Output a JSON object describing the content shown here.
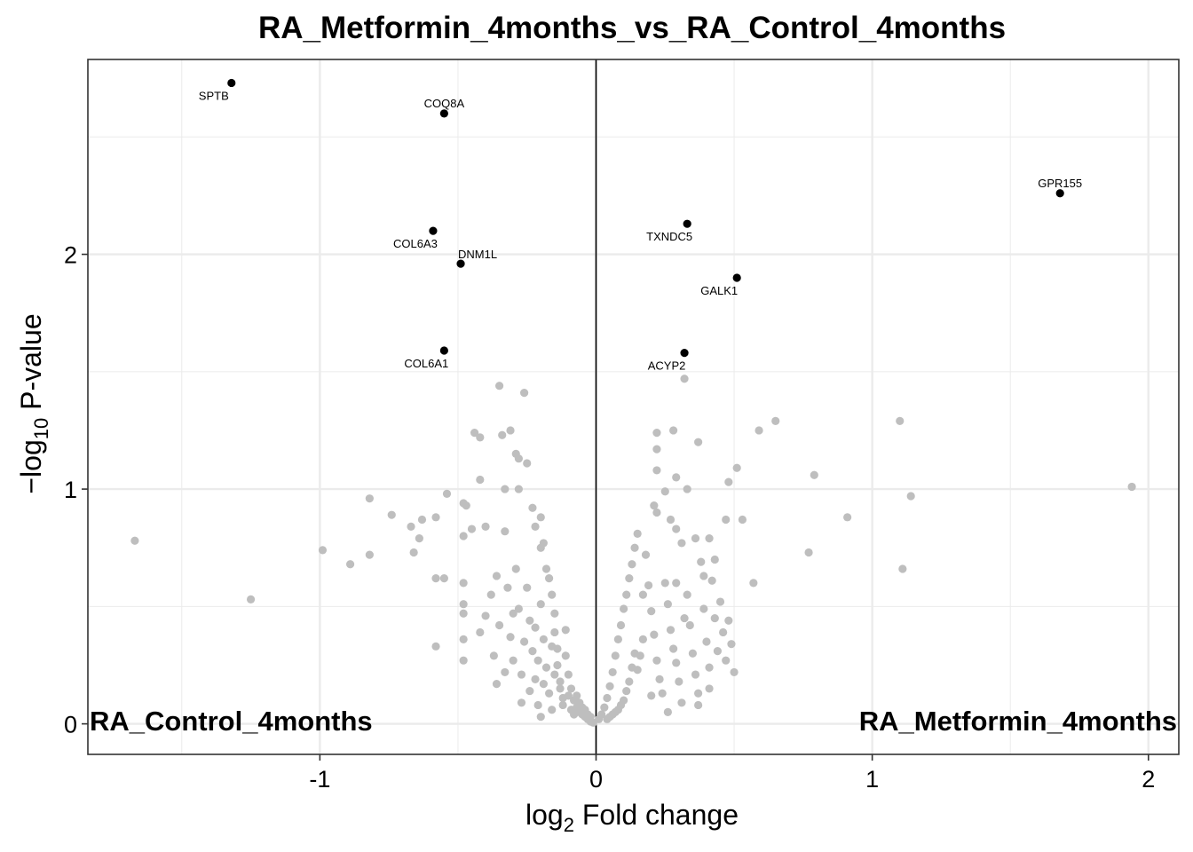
{
  "chart_data": {
    "type": "scatter",
    "title": "RA_Metformin_4months_vs_RA_Control_4months",
    "xlabel_main": "log",
    "xlabel_sub": "2",
    "xlabel_rest": " Fold change",
    "ylabel_main": "−log",
    "ylabel_sub": "10",
    "ylabel_rest": " P-value",
    "xlim": [
      -1.84,
      2.11
    ],
    "ylim": [
      -0.13,
      2.83
    ],
    "x_ticks": [
      -1,
      0,
      1,
      2
    ],
    "x_tick_labels": [
      "-1",
      "0",
      "1",
      "2"
    ],
    "y_ticks": [
      0,
      1,
      2
    ],
    "y_tick_labels": [
      "0",
      "1",
      "2"
    ],
    "x_minor_grid": [
      -1.5,
      -0.5,
      0.5,
      1.5
    ],
    "y_minor_grid": [
      0.5,
      1.5,
      2.5
    ],
    "vline_x": 0,
    "grid": true,
    "group_labels": {
      "left": "RA_Control_4months",
      "right": "RA_Metformin_4months"
    },
    "colors": {
      "significant": "#000000",
      "nonsignificant": "#bebebe",
      "grid": "#ebebeb",
      "border": "#333333"
    },
    "significant": [
      {
        "gene": "SPTB",
        "x": -1.32,
        "y": 2.73,
        "label_pos": "below-left"
      },
      {
        "gene": "COQ8A",
        "x": -0.55,
        "y": 2.6,
        "label_pos": "above"
      },
      {
        "gene": "COL6A3",
        "x": -0.59,
        "y": 2.1,
        "label_pos": "below-left"
      },
      {
        "gene": "DNM1L",
        "x": -0.49,
        "y": 1.96,
        "label_pos": "above-right"
      },
      {
        "gene": "COL6A1",
        "x": -0.55,
        "y": 1.59,
        "label_pos": "below-left"
      },
      {
        "gene": "TXNDC5",
        "x": 0.33,
        "y": 2.13,
        "label_pos": "below-left"
      },
      {
        "gene": "GALK1",
        "x": 0.51,
        "y": 1.9,
        "label_pos": "below-left"
      },
      {
        "gene": "ACYP2",
        "x": 0.32,
        "y": 1.58,
        "label_pos": "below-left"
      },
      {
        "gene": "GPR155",
        "x": 1.68,
        "y": 2.26,
        "label_pos": "above"
      }
    ],
    "nonsignificant": [
      [
        -1.67,
        0.78
      ],
      [
        -1.25,
        0.53
      ],
      [
        -0.99,
        0.74
      ],
      [
        -0.89,
        0.68
      ],
      [
        -0.82,
        0.72
      ],
      [
        -0.82,
        0.96
      ],
      [
        -0.74,
        0.89
      ],
      [
        -0.67,
        0.84
      ],
      [
        -0.66,
        0.73
      ],
      [
        -0.64,
        0.79
      ],
      [
        -0.63,
        0.87
      ],
      [
        -0.58,
        0.88
      ],
      [
        -0.58,
        0.62
      ],
      [
        -0.58,
        0.33
      ],
      [
        -0.55,
        0.62
      ],
      [
        -0.54,
        0.98
      ],
      [
        -0.48,
        0.94
      ],
      [
        -0.47,
        0.93
      ],
      [
        -0.48,
        0.8
      ],
      [
        -0.48,
        0.6
      ],
      [
        -0.48,
        0.51
      ],
      [
        -0.48,
        0.47
      ],
      [
        -0.48,
        0.36
      ],
      [
        -0.48,
        0.27
      ],
      [
        -0.45,
        0.83
      ],
      [
        -0.44,
        1.24
      ],
      [
        -0.42,
        1.04
      ],
      [
        -0.42,
        1.22
      ],
      [
        -0.4,
        0.84
      ],
      [
        -0.35,
        1.44
      ],
      [
        -0.34,
        1.23
      ],
      [
        -0.33,
        1.0
      ],
      [
        -0.33,
        0.82
      ],
      [
        -0.31,
        1.25
      ],
      [
        -0.29,
        1.15
      ],
      [
        -0.28,
        1.13
      ],
      [
        -0.28,
        1.0
      ],
      [
        -0.26,
        1.41
      ],
      [
        -0.25,
        1.11
      ],
      [
        -0.23,
        0.92
      ],
      [
        -0.22,
        0.84
      ],
      [
        -0.2,
        0.88
      ],
      [
        -0.2,
        0.75
      ],
      [
        -0.19,
        0.77
      ],
      [
        -0.18,
        0.66
      ],
      [
        -0.17,
        0.62
      ],
      [
        -0.16,
        0.55
      ],
      [
        -0.15,
        0.47
      ],
      [
        -0.15,
        0.39
      ],
      [
        -0.14,
        0.32
      ],
      [
        -0.14,
        0.25
      ],
      [
        -0.13,
        0.18
      ],
      [
        -0.12,
        0.11
      ],
      [
        -0.36,
        0.17
      ],
      [
        -0.35,
        0.42
      ],
      [
        -0.32,
        0.58
      ],
      [
        -0.31,
        0.37
      ],
      [
        -0.3,
        0.27
      ],
      [
        -0.29,
        0.66
      ],
      [
        -0.28,
        0.49
      ],
      [
        -0.27,
        0.21
      ],
      [
        -0.27,
        0.09
      ],
      [
        -0.25,
        0.58
      ],
      [
        -0.24,
        0.44
      ],
      [
        -0.23,
        0.31
      ],
      [
        -0.22,
        0.19
      ],
      [
        -0.21,
        0.08
      ],
      [
        -0.2,
        0.51
      ],
      [
        -0.19,
        0.36
      ],
      [
        -0.18,
        0.24
      ],
      [
        -0.17,
        0.13
      ],
      [
        -0.16,
        0.06
      ],
      [
        -0.11,
        0.29
      ],
      [
        -0.1,
        0.21
      ],
      [
        -0.09,
        0.15
      ],
      [
        -0.08,
        0.1
      ],
      [
        -0.07,
        0.07
      ],
      [
        -0.06,
        0.05
      ],
      [
        -0.05,
        0.04
      ],
      [
        -0.04,
        0.03
      ],
      [
        -0.03,
        0.02
      ],
      [
        -0.02,
        0.01
      ],
      [
        -0.01,
        0.005
      ],
      [
        -0.42,
        0.39
      ],
      [
        -0.4,
        0.46
      ],
      [
        -0.38,
        0.55
      ],
      [
        -0.37,
        0.29
      ],
      [
        -0.36,
        0.63
      ],
      [
        -0.33,
        0.22
      ],
      [
        -0.3,
        0.47
      ],
      [
        -0.26,
        0.35
      ],
      [
        -0.24,
        0.14
      ],
      [
        -0.22,
        0.41
      ],
      [
        -0.21,
        0.27
      ],
      [
        -0.19,
        0.17
      ],
      [
        -0.15,
        0.21
      ],
      [
        -0.13,
        0.15
      ],
      [
        -0.12,
        0.08
      ],
      [
        -0.1,
        0.12
      ],
      [
        -0.09,
        0.06
      ],
      [
        -0.08,
        0.04
      ],
      [
        -0.07,
        0.12
      ],
      [
        -0.06,
        0.09
      ],
      [
        -0.05,
        0.07
      ],
      [
        -0.04,
        0.06
      ],
      [
        -0.03,
        0.04
      ],
      [
        -0.02,
        0.03
      ],
      [
        -0.16,
        0.33
      ],
      [
        -0.2,
        0.03
      ],
      [
        -0.11,
        0.4
      ],
      [
        0.32,
        1.47
      ],
      [
        0.22,
        1.24
      ],
      [
        0.28,
        1.25
      ],
      [
        0.22,
        1.17
      ],
      [
        0.22,
        1.08
      ],
      [
        0.29,
        1.05
      ],
      [
        0.33,
        1.0
      ],
      [
        0.25,
        0.99
      ],
      [
        0.21,
        0.93
      ],
      [
        0.22,
        0.9
      ],
      [
        0.27,
        0.87
      ],
      [
        0.29,
        0.83
      ],
      [
        0.31,
        0.77
      ],
      [
        0.37,
        1.2
      ],
      [
        0.36,
        0.79
      ],
      [
        0.41,
        0.79
      ],
      [
        0.47,
        0.87
      ],
      [
        0.48,
        1.03
      ],
      [
        0.51,
        1.09
      ],
      [
        0.53,
        0.87
      ],
      [
        0.57,
        0.6
      ],
      [
        0.59,
        1.25
      ],
      [
        0.65,
        1.29
      ],
      [
        0.77,
        0.73
      ],
      [
        0.79,
        1.06
      ],
      [
        0.91,
        0.88
      ],
      [
        1.1,
        1.29
      ],
      [
        1.11,
        0.66
      ],
      [
        1.14,
        0.97
      ],
      [
        1.94,
        1.01
      ],
      [
        0.15,
        0.81
      ],
      [
        0.14,
        0.75
      ],
      [
        0.13,
        0.68
      ],
      [
        0.12,
        0.62
      ],
      [
        0.11,
        0.55
      ],
      [
        0.1,
        0.49
      ],
      [
        0.09,
        0.42
      ],
      [
        0.08,
        0.36
      ],
      [
        0.07,
        0.29
      ],
      [
        0.06,
        0.22
      ],
      [
        0.05,
        0.16
      ],
      [
        0.04,
        0.11
      ],
      [
        0.03,
        0.07
      ],
      [
        0.02,
        0.04
      ],
      [
        0.01,
        0.02
      ],
      [
        0.18,
        0.72
      ],
      [
        0.19,
        0.59
      ],
      [
        0.2,
        0.48
      ],
      [
        0.21,
        0.38
      ],
      [
        0.22,
        0.27
      ],
      [
        0.23,
        0.19
      ],
      [
        0.24,
        0.13
      ],
      [
        0.25,
        0.6
      ],
      [
        0.26,
        0.51
      ],
      [
        0.27,
        0.4
      ],
      [
        0.28,
        0.32
      ],
      [
        0.29,
        0.26
      ],
      [
        0.3,
        0.18
      ],
      [
        0.31,
        0.09
      ],
      [
        0.33,
        0.55
      ],
      [
        0.34,
        0.42
      ],
      [
        0.35,
        0.3
      ],
      [
        0.36,
        0.21
      ],
      [
        0.37,
        0.13
      ],
      [
        0.38,
        0.69
      ],
      [
        0.39,
        0.49
      ],
      [
        0.4,
        0.35
      ],
      [
        0.41,
        0.24
      ],
      [
        0.42,
        0.61
      ],
      [
        0.43,
        0.45
      ],
      [
        0.44,
        0.31
      ],
      [
        0.45,
        0.52
      ],
      [
        0.46,
        0.39
      ],
      [
        0.47,
        0.27
      ],
      [
        0.48,
        0.44
      ],
      [
        0.49,
        0.34
      ],
      [
        0.5,
        0.22
      ],
      [
        0.41,
        0.15
      ],
      [
        0.37,
        0.08
      ],
      [
        0.14,
        0.3
      ],
      [
        0.13,
        0.24
      ],
      [
        0.12,
        0.18
      ],
      [
        0.11,
        0.14
      ],
      [
        0.1,
        0.1
      ],
      [
        0.09,
        0.08
      ],
      [
        0.08,
        0.06
      ],
      [
        0.07,
        0.05
      ],
      [
        0.06,
        0.04
      ],
      [
        0.05,
        0.03
      ],
      [
        0.04,
        0.02
      ],
      [
        0.17,
        0.36
      ],
      [
        0.16,
        0.29
      ],
      [
        0.15,
        0.23
      ],
      [
        0.2,
        0.12
      ],
      [
        0.26,
        0.05
      ],
      [
        0.32,
        0.45
      ],
      [
        0.29,
        0.6
      ],
      [
        0.43,
        0.7
      ],
      [
        0.39,
        0.63
      ],
      [
        0.17,
        0.55
      ]
    ]
  }
}
